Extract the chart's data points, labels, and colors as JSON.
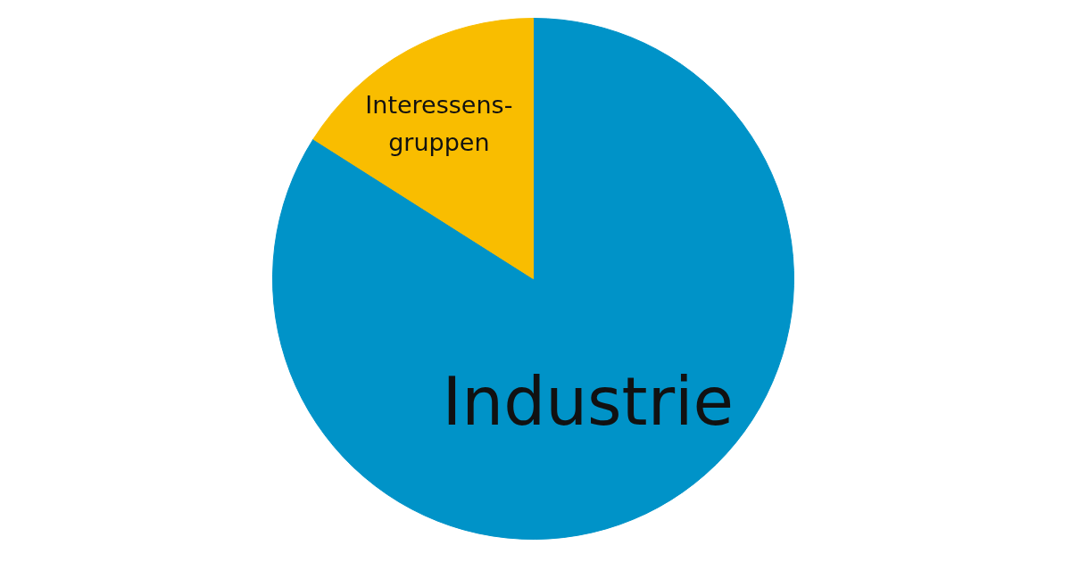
{
  "chart_data": {
    "type": "pie",
    "categories": [
      "Industrie",
      "Interessens-\ngruppen"
    ],
    "values": [
      84,
      16
    ],
    "colors": [
      "#0093c8",
      "#f9bd00"
    ]
  }
}
